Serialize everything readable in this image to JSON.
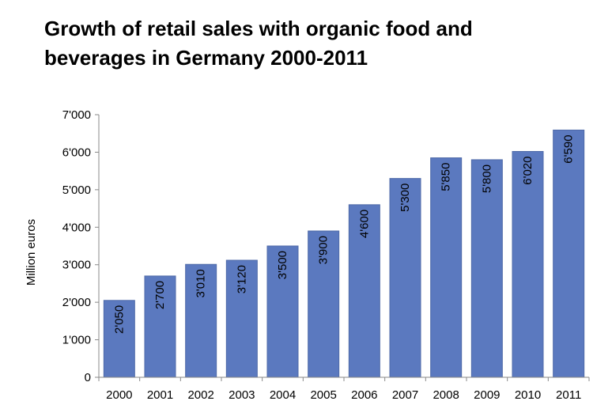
{
  "title_lines": [
    "Growth of retail sales with organic food and",
    "beverages in Germany 2000-2011"
  ],
  "colors": {
    "bar": "#5b79bf",
    "bar_edge": "#4f6aa8",
    "axis": "#888888",
    "text": "#000000"
  },
  "chart_data": {
    "type": "bar",
    "title": "Growth of retail sales with organic food and beverages in Germany 2000-2011",
    "xlabel": "",
    "ylabel": "Million euros",
    "categories": [
      "2000",
      "2001",
      "2002",
      "2003",
      "2004",
      "2005",
      "2006",
      "2007",
      "2008",
      "2009",
      "2010",
      "2011"
    ],
    "values": [
      2050,
      2700,
      3010,
      3120,
      3500,
      3900,
      4600,
      5300,
      5850,
      5800,
      6020,
      6590
    ],
    "value_labels": [
      "2'050",
      "2'700",
      "3'010",
      "3'120",
      "3'500",
      "3'900",
      "4'600",
      "5'300",
      "5'850",
      "5'800",
      "6'020",
      "6'590"
    ],
    "ylim": [
      0,
      7000
    ],
    "yticks": [
      0,
      1000,
      2000,
      3000,
      4000,
      5000,
      6000,
      7000
    ],
    "ytick_labels": [
      "0",
      "1'000",
      "2'000",
      "3'000",
      "4'000",
      "5'000",
      "6'000",
      "7'000"
    ],
    "grid": false,
    "legend": "none"
  }
}
